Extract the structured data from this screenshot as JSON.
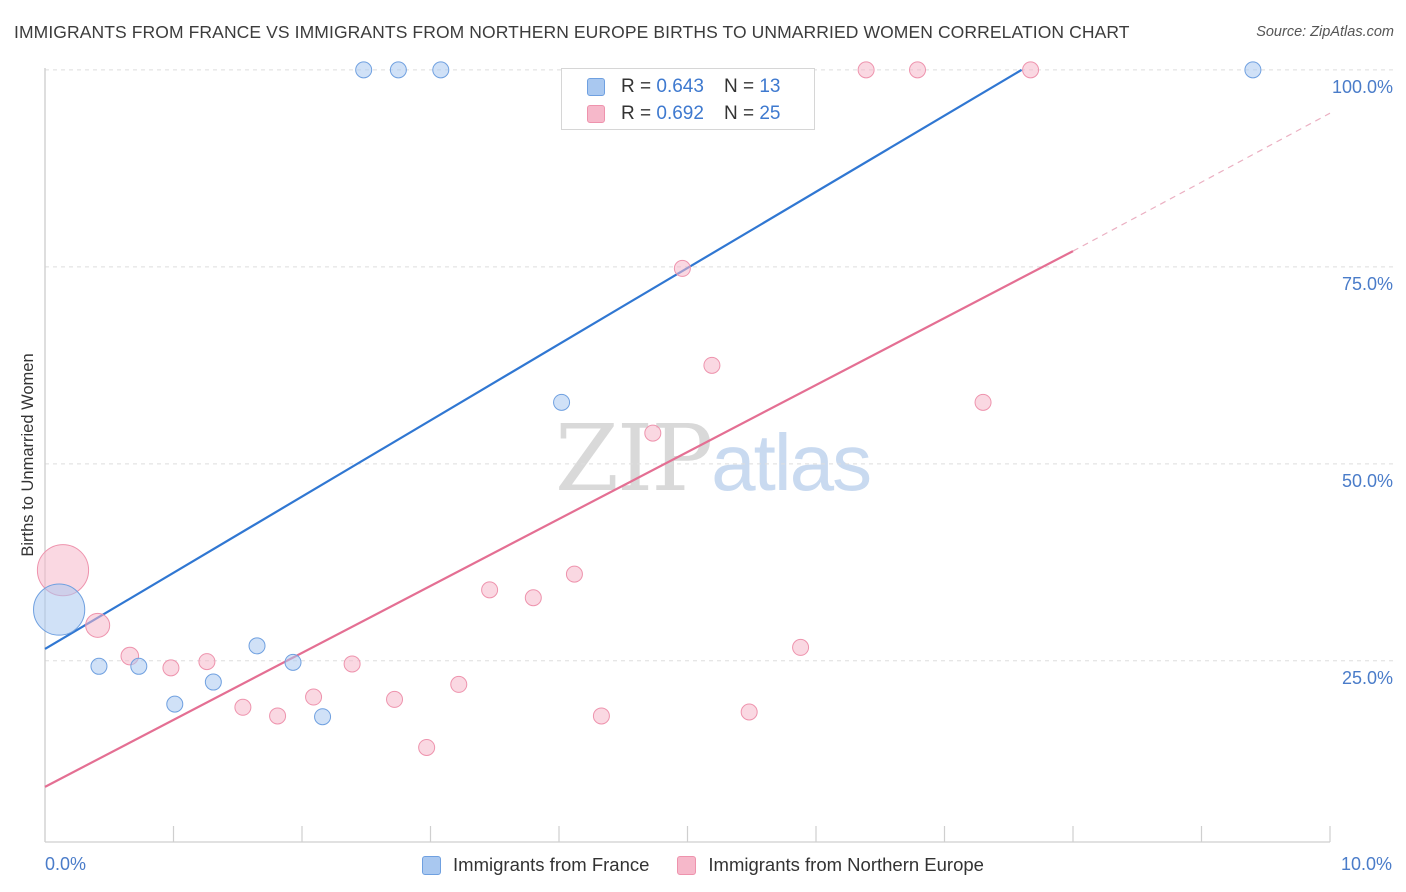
{
  "title": "IMMIGRANTS FROM FRANCE VS IMMIGRANTS FROM NORTHERN EUROPE BIRTHS TO UNMARRIED WOMEN CORRELATION CHART",
  "source": "Source: ZipAtlas.com",
  "watermark": {
    "zip": "ZIP",
    "atlas": "atlas"
  },
  "legend_top": [
    {
      "r_label": "R =",
      "r_value": "0.643",
      "n_label": "N =",
      "n_value": "13",
      "color": "#a9c8f0"
    },
    {
      "r_label": "R =",
      "r_value": "0.692",
      "n_label": "N =",
      "n_value": "25",
      "color": "#f6b8ca"
    }
  ],
  "legend_bottom": [
    {
      "label": "Immigrants from France",
      "color": "#a9c8f0"
    },
    {
      "label": "Immigrants from Northern Europe",
      "color": "#f6b8ca"
    }
  ],
  "chart_data": {
    "type": "scatter",
    "title": "IMMIGRANTS FROM FRANCE VS IMMIGRANTS FROM NORTHERN EUROPE BIRTHS TO UNMARRIED WOMEN CORRELATION CHART",
    "xlabel": "",
    "ylabel": "Births to Unmarried Women",
    "xlim": [
      0,
      10
    ],
    "ylim": [
      2,
      101
    ],
    "x_tick_labels": [
      {
        "x": 0,
        "label": "0.0%"
      },
      {
        "x": 10,
        "label": "10.0%"
      }
    ],
    "y_tick_labels": [
      {
        "y": 25,
        "label": "25.0%"
      },
      {
        "y": 50,
        "label": "50.0%"
      },
      {
        "y": 75,
        "label": "75.0%"
      },
      {
        "y": 100,
        "label": "100.0%"
      }
    ],
    "series": [
      {
        "name": "Immigrants from France",
        "color": "#a9c8f0",
        "stroke": "#6fa0e0",
        "line_color": "#3077d2",
        "trend": {
          "x": [
            0,
            7.6
          ],
          "y": [
            26.5,
            100
          ]
        },
        "points": [
          {
            "x": 0.11,
            "y": 31.5,
            "size": 3.2
          },
          {
            "x": 0.42,
            "y": 24.3,
            "size": 1
          },
          {
            "x": 0.73,
            "y": 24.3,
            "size": 1
          },
          {
            "x": 1.01,
            "y": 19.5,
            "size": 1
          },
          {
            "x": 1.31,
            "y": 22.3,
            "size": 1
          },
          {
            "x": 1.65,
            "y": 26.9,
            "size": 1
          },
          {
            "x": 1.93,
            "y": 24.8,
            "size": 1
          },
          {
            "x": 2.16,
            "y": 17.9,
            "size": 1
          },
          {
            "x": 2.48,
            "y": 100,
            "size": 1
          },
          {
            "x": 2.75,
            "y": 100,
            "size": 1
          },
          {
            "x": 3.08,
            "y": 100,
            "size": 1
          },
          {
            "x": 4.02,
            "y": 57.8,
            "size": 1
          },
          {
            "x": 9.4,
            "y": 100,
            "size": 1
          }
        ]
      },
      {
        "name": "Immigrants from Northern Europe",
        "color": "#f6b8ca",
        "stroke": "#ee93ad",
        "line_color": "#e46f93",
        "trend": {
          "x": [
            0,
            8.0
          ],
          "y": [
            9,
            77
          ]
        },
        "trend_extension": {
          "x": [
            8.0,
            10.0
          ],
          "y": [
            77,
            94.5
          ]
        },
        "points": [
          {
            "x": 0.14,
            "y": 36.5,
            "size": 3.2
          },
          {
            "x": 0.41,
            "y": 29.5,
            "size": 1.5
          },
          {
            "x": 0.66,
            "y": 25.6,
            "size": 1.1
          },
          {
            "x": 0.98,
            "y": 24.1,
            "size": 1
          },
          {
            "x": 1.26,
            "y": 24.9,
            "size": 1
          },
          {
            "x": 1.54,
            "y": 19.1,
            "size": 1
          },
          {
            "x": 1.81,
            "y": 18.0,
            "size": 1
          },
          {
            "x": 2.09,
            "y": 20.4,
            "size": 1
          },
          {
            "x": 2.39,
            "y": 24.6,
            "size": 1
          },
          {
            "x": 2.72,
            "y": 20.1,
            "size": 1
          },
          {
            "x": 2.97,
            "y": 14.0,
            "size": 1
          },
          {
            "x": 3.22,
            "y": 22.0,
            "size": 1
          },
          {
            "x": 3.46,
            "y": 34.0,
            "size": 1
          },
          {
            "x": 3.8,
            "y": 33.0,
            "size": 1
          },
          {
            "x": 4.12,
            "y": 36.0,
            "size": 1
          },
          {
            "x": 4.33,
            "y": 18.0,
            "size": 1
          },
          {
            "x": 4.73,
            "y": 53.9,
            "size": 1
          },
          {
            "x": 4.96,
            "y": 74.8,
            "size": 1
          },
          {
            "x": 5.19,
            "y": 62.5,
            "size": 1
          },
          {
            "x": 5.48,
            "y": 18.5,
            "size": 1
          },
          {
            "x": 5.88,
            "y": 26.7,
            "size": 1
          },
          {
            "x": 6.39,
            "y": 100,
            "size": 1
          },
          {
            "x": 6.79,
            "y": 100,
            "size": 1
          },
          {
            "x": 7.3,
            "y": 57.8,
            "size": 1
          },
          {
            "x": 7.67,
            "y": 100,
            "size": 1
          }
        ]
      }
    ]
  }
}
